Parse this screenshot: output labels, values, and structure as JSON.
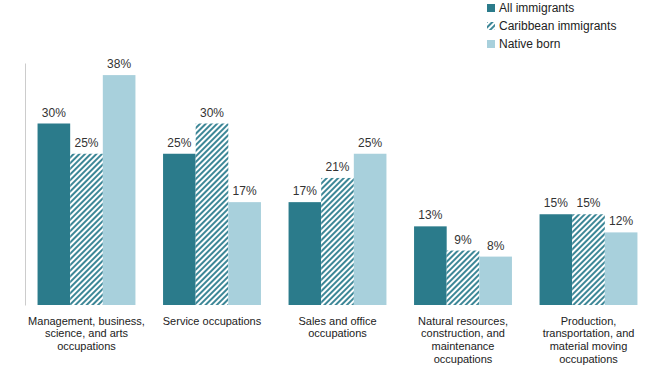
{
  "chart_data": {
    "type": "bar",
    "categories": [
      "Management, business, science, and arts occupations",
      "Service occupations",
      "Sales and office occupations",
      "Natural resources, construction, and maintenance occupations",
      "Production, transportation, and material moving occupations"
    ],
    "series": [
      {
        "name": "All immigrants",
        "color": "#2b7b8b",
        "values": [
          30,
          25,
          17,
          13,
          15
        ],
        "value_labels": [
          "30%",
          "25%",
          "17%",
          "13%",
          "15%"
        ]
      },
      {
        "name": "Caribbean immigrants",
        "color": "#3d8797",
        "line_style": "hatched",
        "values": [
          25,
          30,
          21,
          9,
          15
        ],
        "value_labels": [
          "25%",
          "30%",
          "21%",
          "9%",
          "15%"
        ]
      },
      {
        "name": "Native born",
        "color": "#a8d0dc",
        "values": [
          38,
          17,
          25,
          8,
          12
        ],
        "value_labels": [
          "38%",
          "17%",
          "25%",
          "8%",
          "12%"
        ]
      }
    ],
    "ylim": [
      0,
      40
    ],
    "grid": false,
    "legend": "top-right",
    "data_labels": true,
    "tick_labels": "x"
  }
}
